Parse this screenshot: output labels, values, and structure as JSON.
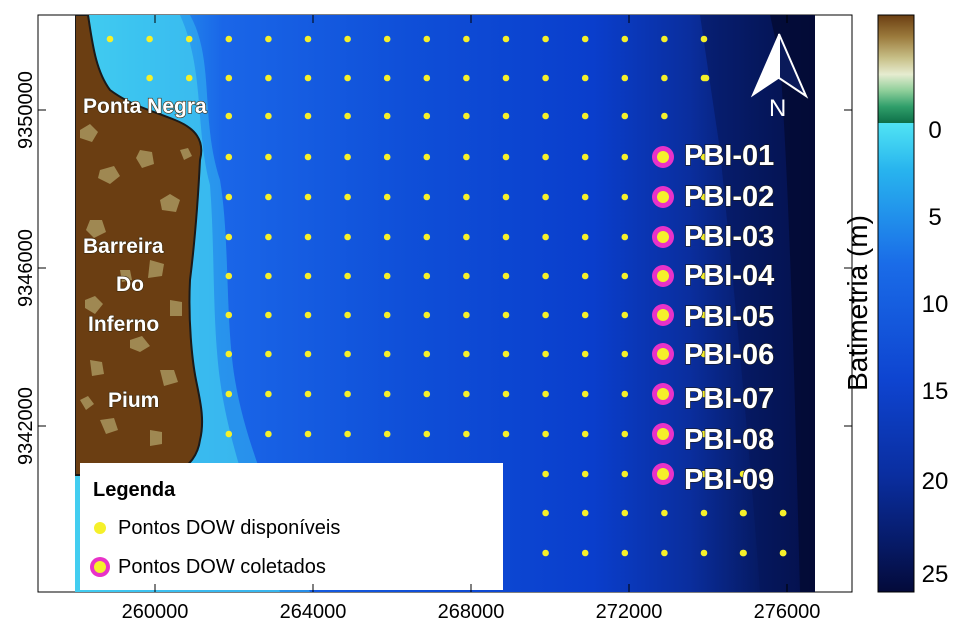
{
  "map": {
    "x_ticks": [
      "260000",
      "264000",
      "268000",
      "272000",
      "276000"
    ],
    "y_ticks": [
      "9350000",
      "9346000",
      "9342000"
    ],
    "places": [
      "Ponta Negra",
      "Barreira",
      "Do",
      "Inferno",
      "Pium"
    ],
    "stations": [
      "PBI-01",
      "PBI-02",
      "PBI-03",
      "PBI-04",
      "PBI-05",
      "PBI-06",
      "PBI-07",
      "PBI-08",
      "PBI-09"
    ],
    "north_label": "N",
    "colors": {
      "land": "#6b3e12",
      "land_patch": "#a9955e",
      "shallow": "#4fd6ef",
      "deep": "#050a45",
      "point": "#f5f02a",
      "collected_ring": "#e832c8"
    }
  },
  "legend": {
    "title": "Legenda",
    "items": [
      "Pontos DOW disponíveis",
      "Pontos DOW coletados"
    ]
  },
  "colorbar": {
    "title": "Batimetria  (m)",
    "ticks": [
      "0",
      "5",
      "10",
      "15",
      "20",
      "25"
    ]
  }
}
